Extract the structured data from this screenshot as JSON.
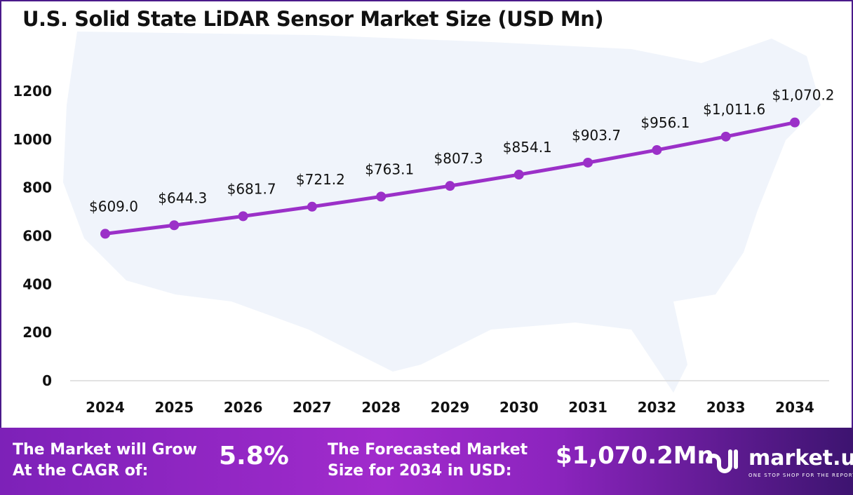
{
  "chart_data": {
    "type": "line",
    "title": "U.S. Solid State LiDAR Sensor Market Size (USD Mn)",
    "categories": [
      "2024",
      "2025",
      "2026",
      "2027",
      "2028",
      "2029",
      "2030",
      "2031",
      "2032",
      "2033",
      "2034"
    ],
    "values": [
      609.0,
      644.3,
      681.7,
      721.2,
      763.1,
      807.3,
      854.1,
      903.7,
      956.1,
      1011.6,
      1070.2
    ],
    "data_labels": [
      "$609.0",
      "$644.3",
      "$681.7",
      "$721.2",
      "$763.1",
      "$807.3",
      "$854.1",
      "$903.7",
      "$956.1",
      "$1,011.6",
      "$1,070.2"
    ],
    "yticks": [
      "0",
      "200",
      "400",
      "600",
      "800",
      "1000",
      "1200"
    ],
    "ylim": [
      0,
      1200
    ],
    "grid": false,
    "line_color": "#9b30c8"
  },
  "footer": {
    "cagr_label_1": "The Market will Grow",
    "cagr_label_2": "At the CAGR of:",
    "cagr_value": "5.8%",
    "forecast_label_1": "The Forecasted Market",
    "forecast_label_2": "Size for 2034 in USD:",
    "forecast_value": "$1,070.2Mn",
    "brand_name": "market.us",
    "brand_tagline": "ONE STOP SHOP FOR THE REPORTS"
  }
}
